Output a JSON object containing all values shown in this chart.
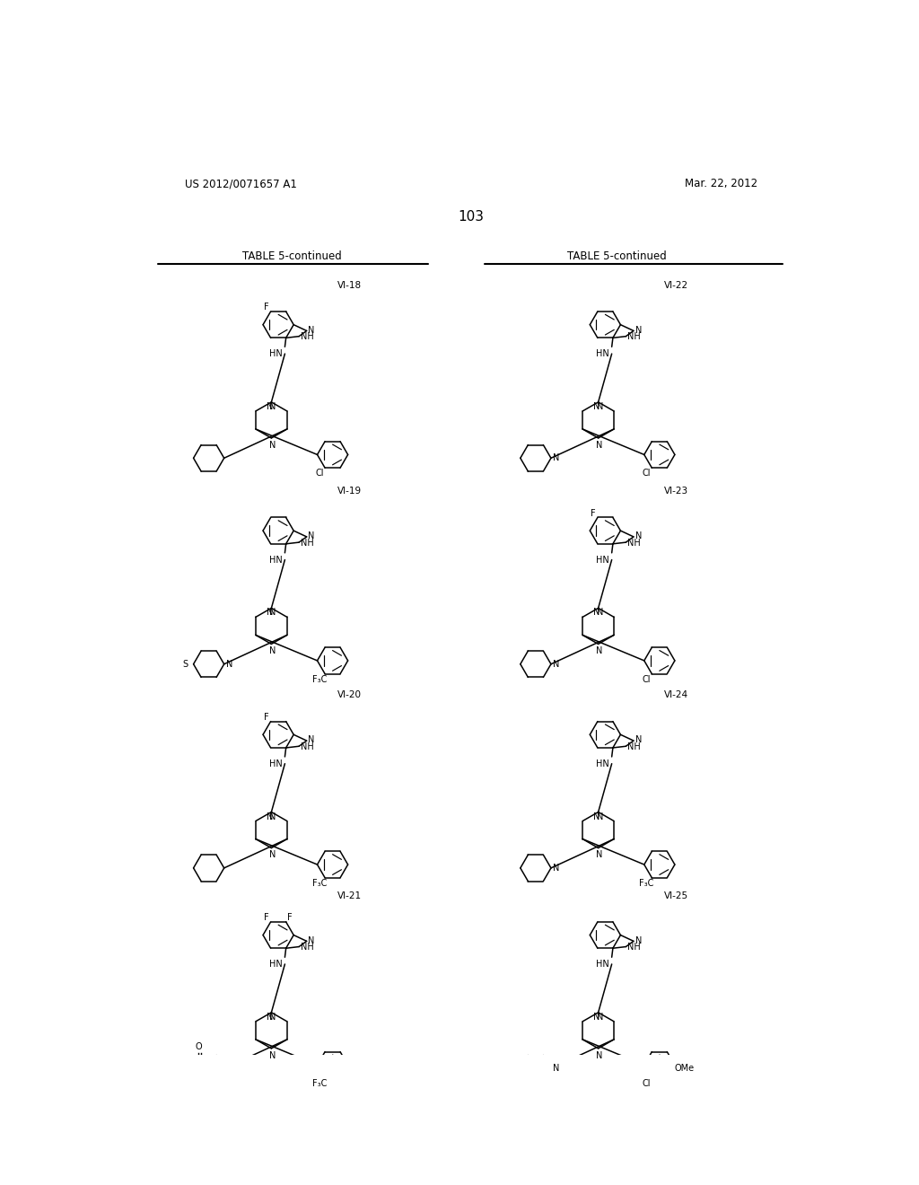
{
  "page_header_left": "US 2012/0071657 A1",
  "page_header_right": "Mar. 22, 2012",
  "page_number": "103",
  "table_header": "TABLE 5-continued",
  "background_color": "#ffffff",
  "text_color": "#000000",
  "line_color": "#000000"
}
